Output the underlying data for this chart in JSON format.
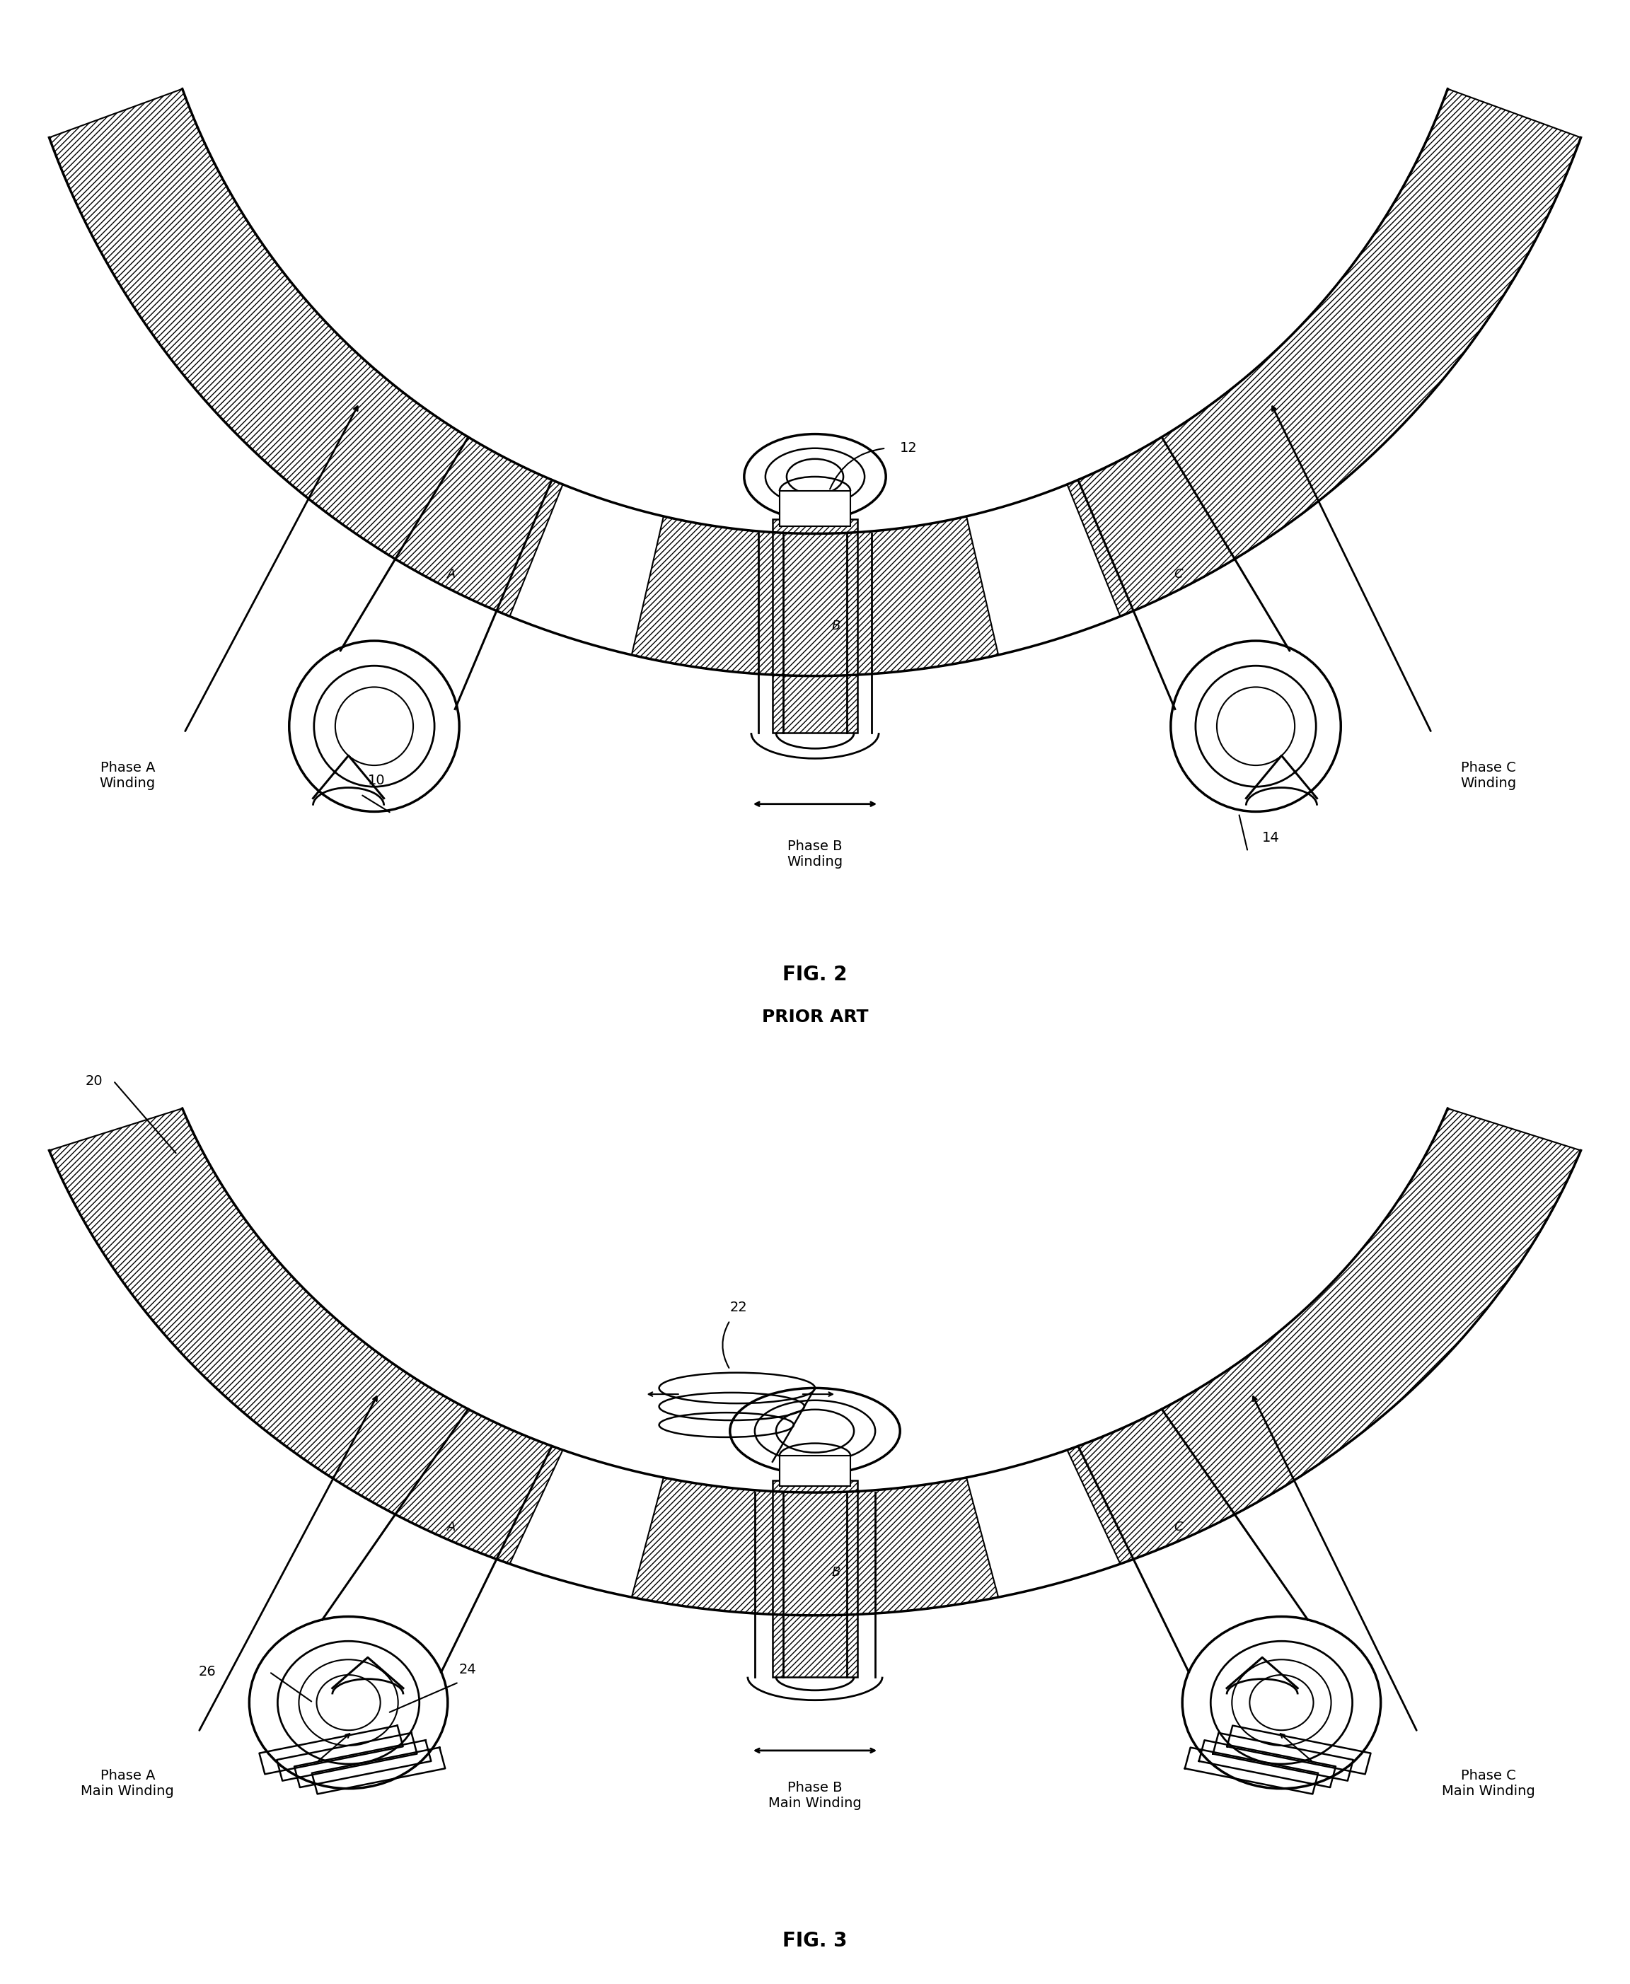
{
  "fig2_title": "FIG. 2",
  "fig2_subtitle": "PRIOR ART",
  "fig3_title": "FIG. 3",
  "bg_color": "#ffffff",
  "label_A_fig2": "Phase A\nWinding",
  "label_B_fig2": "Phase B\nWinding",
  "label_C_fig2": "Phase C\nWinding",
  "label_A_fig3": "Phase A\nMain Winding",
  "label_B_fig3": "Phase B\nMain Winding",
  "label_C_fig3": "Phase C\nMain Winding",
  "ref_10": "10",
  "ref_12": "12",
  "ref_14": "14",
  "ref_20": "20",
  "ref_22": "22",
  "ref_24": "24",
  "ref_26": "26",
  "letter_A": "A",
  "letter_B": "B",
  "letter_C": "C"
}
